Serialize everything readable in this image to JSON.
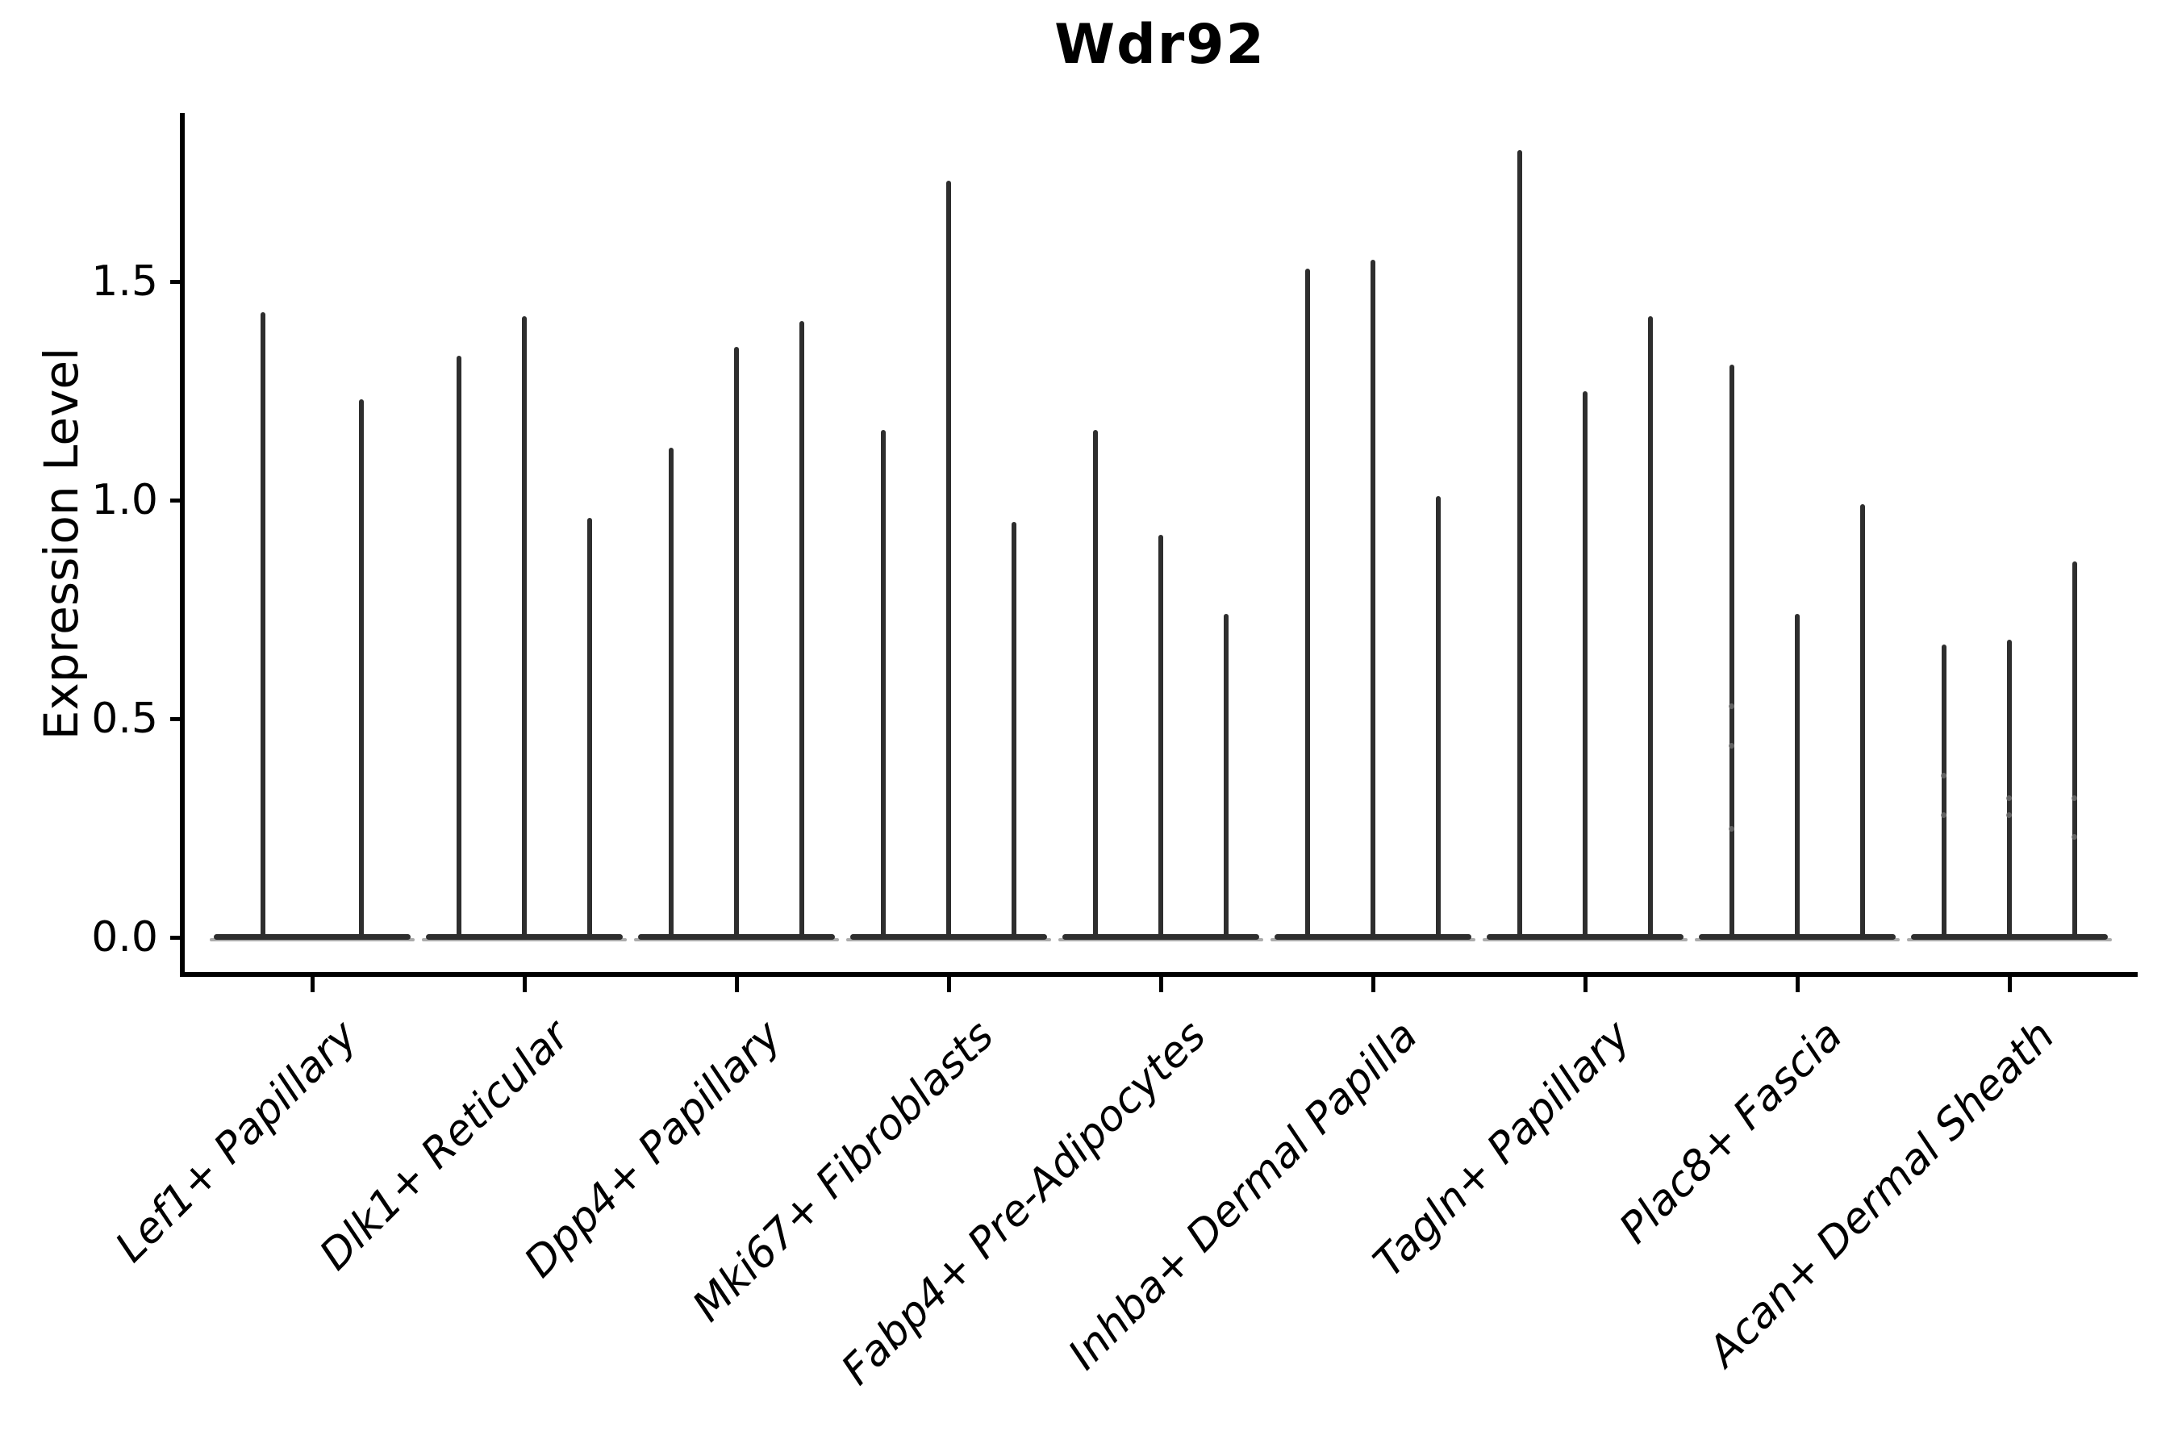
{
  "title": "Wdr92",
  "axes": {
    "y_label": "Expression Level",
    "y_tick_labels": [
      "0.0",
      "0.5",
      "1.0",
      "1.5"
    ]
  },
  "colors": {
    "violin": "#2e2e2e",
    "axis": "#000000",
    "text": "#000000",
    "dot": "#6f6f6f",
    "background": "#ffffff"
  },
  "chart_data": {
    "type": "violin",
    "title": "Wdr92",
    "xlabel": "",
    "ylabel": "Expression Level",
    "ylim": [
      0,
      1.89
    ],
    "yticks": [
      0.0,
      0.5,
      1.0,
      1.5
    ],
    "grid": false,
    "legend": null,
    "orientation": "vertical",
    "style_note": "needle-thin violins with wide flat base at 0; 2-3 violins per category; black on white; only left and bottom spines; x labels italic rotated 45deg",
    "categories": [
      "Lef1+ Papillary",
      "Dlk1+ Reticular",
      "Dpp4+ Papillary",
      "Mki67+ Fibroblasts",
      "Fabp4+ Pre-Adipocytes",
      "Inhba+ Dermal Papilla",
      "Tagln+ Papillary",
      "Plac8+ Fascia",
      "Acan+ Dermal Sheath"
    ],
    "groups": [
      {
        "category": "Lef1+ Papillary",
        "violins": [
          {
            "max": 1.43
          },
          {
            "max": 1.23
          }
        ]
      },
      {
        "category": "Dlk1+ Reticular",
        "violins": [
          {
            "max": 1.33
          },
          {
            "max": 1.42
          },
          {
            "max": 0.96
          }
        ]
      },
      {
        "category": "Dpp4+ Papillary",
        "violins": [
          {
            "max": 1.12
          },
          {
            "max": 1.35
          },
          {
            "max": 1.41
          }
        ]
      },
      {
        "category": "Mki67+ Fibroblasts",
        "violins": [
          {
            "max": 1.16
          },
          {
            "max": 1.73
          },
          {
            "max": 0.95
          }
        ]
      },
      {
        "category": "Fabp4+ Pre-Adipocytes",
        "violins": [
          {
            "max": 1.16
          },
          {
            "max": 0.92
          },
          {
            "max": 0.74
          }
        ]
      },
      {
        "category": "Inhba+ Dermal Papilla",
        "violins": [
          {
            "max": 1.53
          },
          {
            "max": 1.55
          },
          {
            "max": 1.01
          }
        ]
      },
      {
        "category": "Tagln+ Papillary",
        "violins": [
          {
            "max": 1.8
          },
          {
            "max": 1.25
          },
          {
            "max": 1.42
          }
        ]
      },
      {
        "category": "Plac8+ Fascia",
        "violins": [
          {
            "max": 1.31,
            "dots": [
              0.53,
              0.44,
              0.25
            ]
          },
          {
            "max": 0.74
          },
          {
            "max": 0.99
          }
        ]
      },
      {
        "category": "Acan+ Dermal Sheath",
        "violins": [
          {
            "max": 0.67,
            "dots": [
              0.37,
              0.28
            ]
          },
          {
            "max": 0.68,
            "dots": [
              0.32,
              0.28
            ]
          },
          {
            "max": 0.86,
            "dots": [
              0.32,
              0.23
            ]
          }
        ]
      }
    ],
    "baseline_value": 0.0
  }
}
